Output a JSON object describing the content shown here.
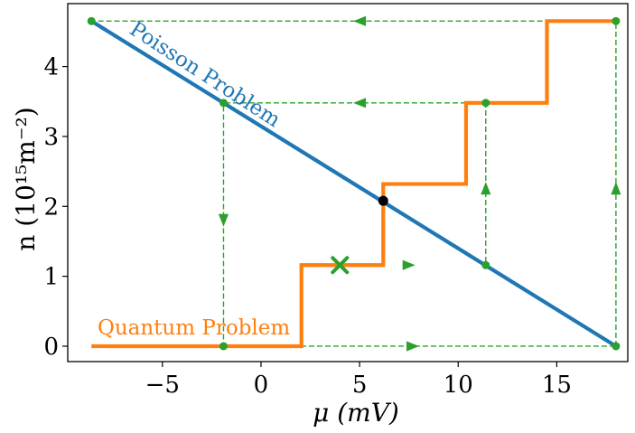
{
  "chart_data": {
    "type": "line",
    "xlabel": "μ (mV)",
    "ylabel": "n (10¹⁵m⁻²)",
    "xlim": [
      -9.8,
      18.6
    ],
    "ylim": [
      -0.22,
      4.9
    ],
    "xticks": [
      -5,
      0,
      5,
      10,
      15
    ],
    "xtick_labels": [
      "−5",
      "0",
      "5",
      "10",
      "15"
    ],
    "yticks": [
      0,
      1,
      2,
      3,
      4
    ],
    "ytick_labels": [
      "0",
      "1",
      "2",
      "3",
      "4"
    ],
    "grid": false,
    "series": [
      {
        "name": "Poisson Problem",
        "color": "#1f77b4",
        "x": [
          -8.6,
          18.0
        ],
        "y": [
          4.65,
          0.0
        ]
      },
      {
        "name": "Quantum Problem",
        "color": "#ff7f0e",
        "x": [
          -8.6,
          2.05,
          2.05,
          6.2,
          6.2,
          10.4,
          10.4,
          14.5,
          14.5,
          18.0
        ],
        "y": [
          0.0,
          0.0,
          1.16,
          1.16,
          2.32,
          2.32,
          3.48,
          3.48,
          4.65,
          4.65
        ]
      }
    ],
    "iteration_path": {
      "color": "#2ca02c",
      "x": [
        18.0,
        18.0,
        -8.6,
        -1.9,
        -1.9,
        18.0,
        11.4,
        11.4,
        -1.9
      ],
      "y": [
        0.0,
        4.65,
        4.65,
        3.48,
        0.0,
        0.0,
        1.16,
        3.48,
        3.48
      ]
    },
    "iteration_points": {
      "color": "#2ca02c",
      "x": [
        18.0,
        18.0,
        -8.6,
        -1.9,
        -1.9,
        11.4,
        11.4
      ],
      "y": [
        0.0,
        4.65,
        4.65,
        3.48,
        0.0,
        1.16,
        3.48
      ]
    },
    "arrows": [
      {
        "x": 18.0,
        "y": 2.26,
        "dir": "up"
      },
      {
        "x": 5.0,
        "y": 4.65,
        "dir": "left"
      },
      {
        "x": -1.9,
        "y": 1.8,
        "dir": "down"
      },
      {
        "x": 7.7,
        "y": 0.0,
        "dir": "right"
      },
      {
        "x": 11.4,
        "y": 2.26,
        "dir": "up"
      },
      {
        "x": 5.0,
        "y": 3.48,
        "dir": "left"
      },
      {
        "x": 7.5,
        "y": 1.16,
        "dir": "right"
      }
    ],
    "solution_point": {
      "x": 6.2,
      "y": 2.08,
      "color": "#000000"
    },
    "start_marker": {
      "x": 4.0,
      "y": 1.16,
      "color": "#2ca02c",
      "shape": "x"
    },
    "annotations": [
      {
        "text": "Poisson Problem",
        "color": "#1f77b4",
        "rotation": -33
      },
      {
        "text": "Quantum Problem",
        "color": "#ff7f0e"
      }
    ]
  }
}
